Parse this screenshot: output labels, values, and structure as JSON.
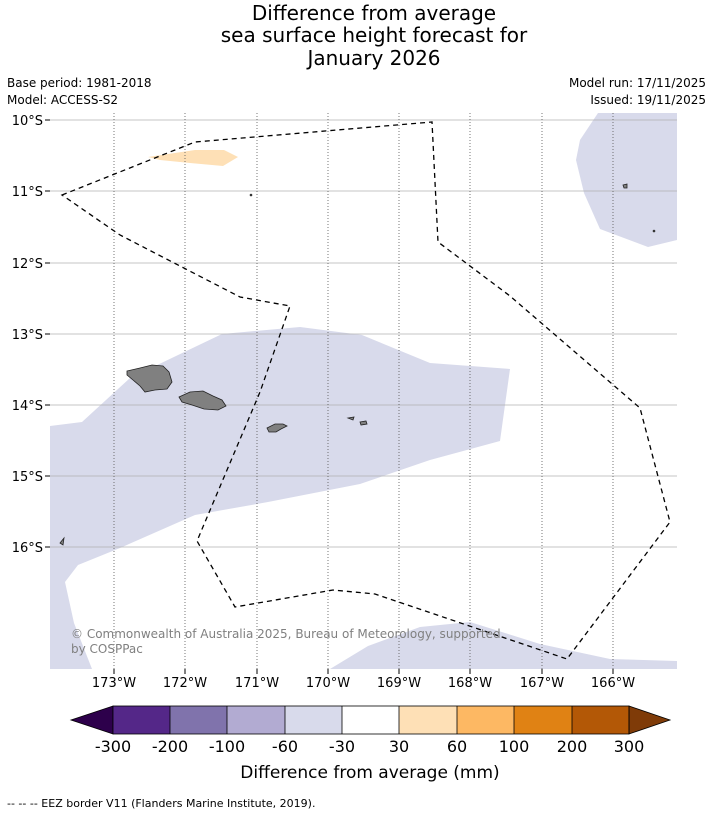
{
  "title": {
    "line1": "Difference from average",
    "line2": "sea surface height forecast for",
    "line3": "January 2026"
  },
  "meta": {
    "base_period": "Base period: 1981-2018",
    "model": "Model: ACCESS-S2",
    "model_run": "Model run: 17/11/2025",
    "issued": "Issued: 19/11/2025"
  },
  "map": {
    "lat_labels": [
      "10°S",
      "11°S",
      "12°S",
      "13°S",
      "14°S",
      "15°S",
      "16°S"
    ],
    "lon_labels": [
      "173°W",
      "172°W",
      "171°W",
      "170°W",
      "169°W",
      "168°W",
      "167°W",
      "166°W"
    ],
    "copyright_line1": "© Commonwealth of Australia 2025, Bureau of Meteorology, supported",
    "copyright_line2": "by COSPPac"
  },
  "colorbar": {
    "label": "Difference from average (mm)",
    "ticks": [
      "-300",
      "-200",
      "-100",
      "-60",
      "-30",
      "30",
      "60",
      "100",
      "200",
      "300"
    ],
    "colors": [
      "#2d004b",
      "#542788",
      "#8073ac",
      "#b2abd2",
      "#d8daeb",
      "#ffffff",
      "#fee0b6",
      "#fdb863",
      "#e08214",
      "#b35806",
      "#7f3b08"
    ]
  },
  "footer": {
    "legend": "--  --  -- EEZ border V11 (Flanders Marine Institute, 2019)."
  },
  "colors": {
    "anomaly_negative": "#d8daeb",
    "anomaly_positive": "#fee0b6",
    "land": "#808080",
    "eez": "#000000"
  }
}
